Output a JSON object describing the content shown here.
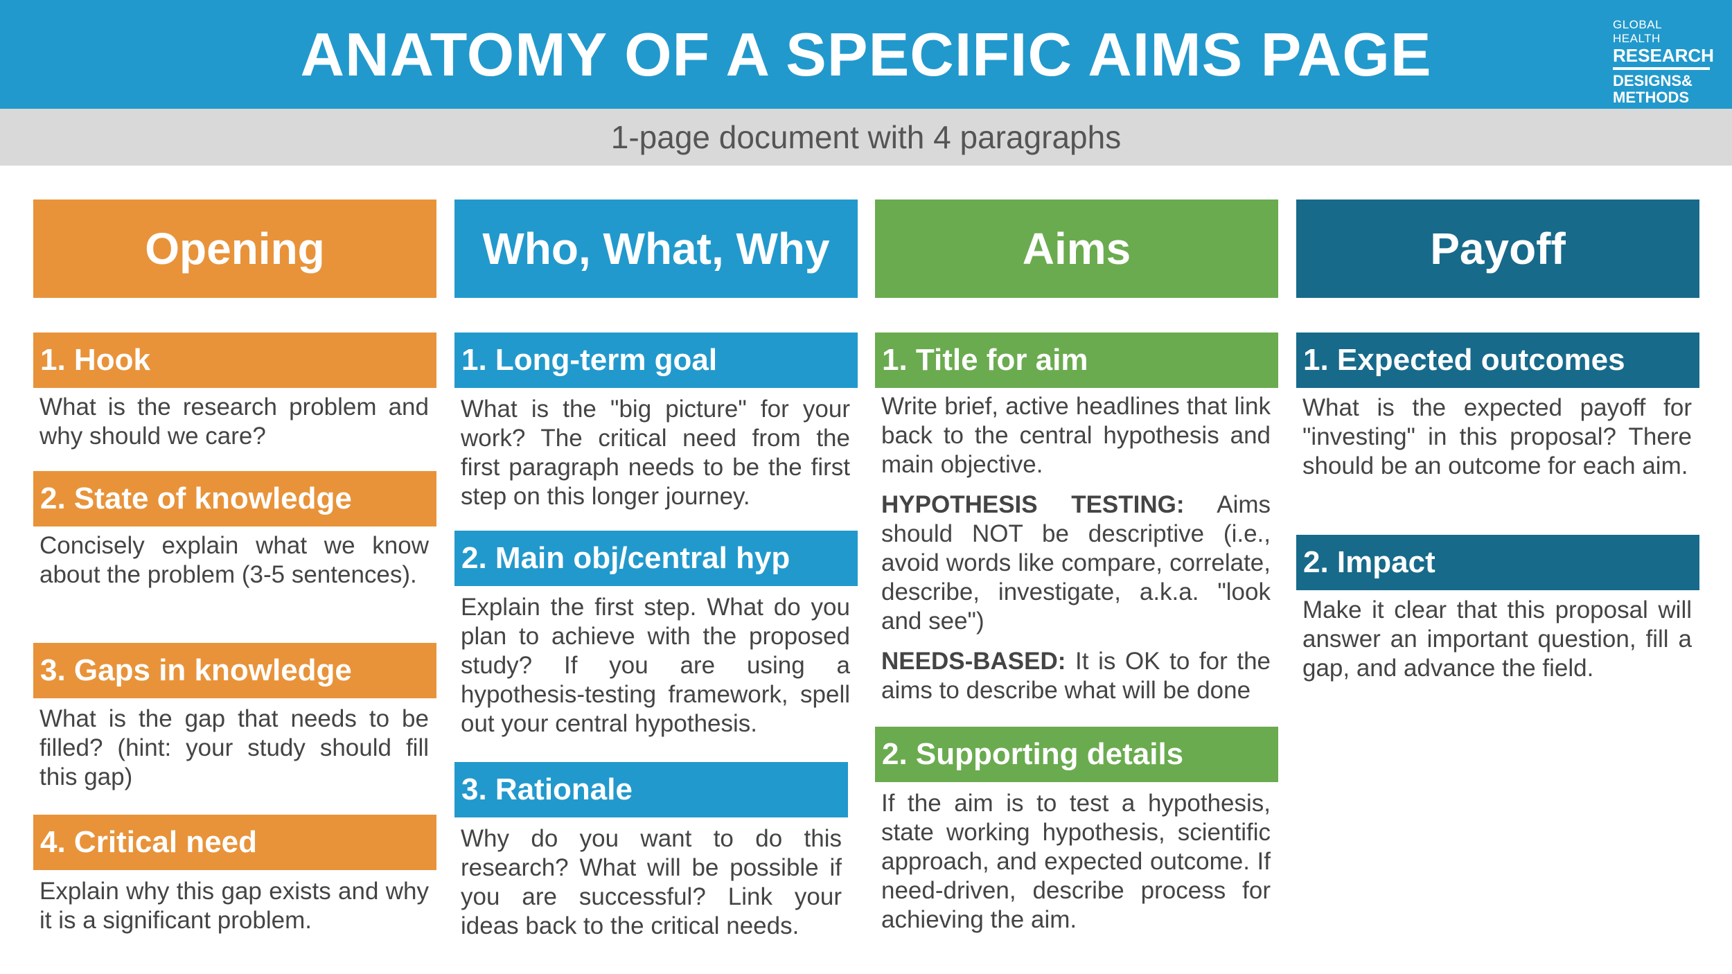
{
  "header": {
    "title": "ANATOMY OF A SPECIFIC AIMS PAGE",
    "subtitle": "1-page document with 4 paragraphs",
    "logo": {
      "line1": "GLOBAL HEALTH",
      "line2": "RESEARCH",
      "line3": "DESIGNS&",
      "line4": "METHODS"
    }
  },
  "columns": [
    {
      "heading": "Opening",
      "sections": [
        {
          "title": "1. Hook",
          "text": "What is the research problem and why should we care?"
        },
        {
          "title": "2. State of knowledge",
          "text": "Concisely explain what we know about the problem (3-5 sentences)."
        },
        {
          "title": "3. Gaps in knowledge",
          "text": "What is the gap that needs to be filled? (hint: your study should fill this gap)"
        },
        {
          "title": "4. Critical need",
          "text": "Explain why this gap exists and why it is a significant problem."
        }
      ]
    },
    {
      "heading": "Who, What, Why",
      "sections": [
        {
          "title": "1. Long-term goal",
          "text": "What is the \"big picture\" for your work? The critical need from the first paragraph needs to be the first step on this longer journey."
        },
        {
          "title": "2. Main obj/central hyp",
          "text": "Explain the first step. What do you plan to achieve with the proposed study? If you are using a hypothesis-testing framework, spell out your central hypothesis."
        },
        {
          "title": "3. Rationale",
          "text": "Why do you want to do this research? What will be possible if you are successful? Link your ideas back to the critical needs."
        }
      ]
    },
    {
      "heading": "Aims",
      "sections": [
        {
          "title": "1. Title for aim",
          "text": "Write brief, active headlines that link back to the central hypothesis and main objective.",
          "hyp_label": "HYPOTHESIS TESTING:",
          "hyp_text": " Aims should NOT be descriptive (i.e., avoid words like compare, correlate, describe, investigate, a.k.a. \"look and see\")",
          "needs_label": "NEEDS-BASED:",
          "needs_text": " It is OK to for the aims to describe what will be done"
        },
        {
          "title": "2. Supporting details",
          "text": "If the aim is to test a hypothesis, state working hypothesis, scientific approach, and expected outcome. If need-driven, describe process for achieving the aim."
        }
      ]
    },
    {
      "heading": "Payoff",
      "sections": [
        {
          "title": "1. Expected outcomes",
          "text": "What is the expected payoff for \"investing\" in this proposal? There should be an outcome for each aim."
        },
        {
          "title": "2. Impact",
          "text": "Make it clear that this proposal will answer an important question, fill a gap, and advance the field."
        }
      ]
    }
  ],
  "colors": {
    "opening": "#e8933a",
    "who": "#2299cc",
    "aims": "#6aab4f",
    "payoff": "#176a8a",
    "header": "#2299cc",
    "subbar": "#d9d9d9"
  }
}
